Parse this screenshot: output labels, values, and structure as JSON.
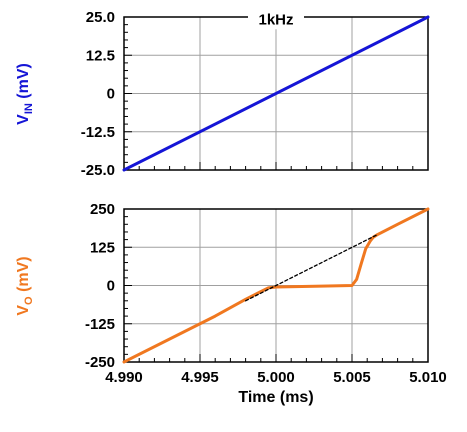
{
  "colors": {
    "vin": "#1515d6",
    "vo": "#f07820",
    "grid": "#a0a0a0",
    "reference": "#000000"
  },
  "chart_data": [
    {
      "type": "line",
      "ylabel_main": "V",
      "ylabel_sub": "IN",
      "ylabel_unit": " (mV)",
      "annotation": "1kHz",
      "xlim": [
        4.99,
        5.01
      ],
      "ylim": [
        -25,
        25
      ],
      "xticks": [
        4.99,
        4.995,
        5.0,
        5.005,
        5.01
      ],
      "yticks": [
        25,
        12.5,
        0,
        -12.5,
        -25
      ],
      "ytick_labels": [
        "25.0",
        "12.5",
        "0",
        "-12.5",
        "-25.0"
      ],
      "grid": true,
      "series": [
        {
          "x": [
            4.99,
            5.01
          ],
          "y": [
            -25,
            25
          ]
        }
      ]
    },
    {
      "type": "line",
      "ylabel_main": "V",
      "ylabel_sub": "O",
      "ylabel_unit": " (mV)",
      "xlabel": "Time (ms)",
      "xlim": [
        4.99,
        5.01
      ],
      "ylim": [
        -250,
        250
      ],
      "xticks": [
        4.99,
        4.995,
        5.0,
        5.005,
        5.01
      ],
      "xtick_labels": [
        "4.990",
        "4.995",
        "5.000",
        "5.005",
        "5.010"
      ],
      "yticks": [
        250,
        125,
        0,
        -125,
        -250
      ],
      "ytick_labels": [
        "250",
        "125",
        "0",
        "-125",
        "-250"
      ],
      "grid": true,
      "series": [
        {
          "style": "solid",
          "x": [
            4.99,
            4.996,
            4.998,
            4.999,
            4.9995,
            5.0,
            5.003,
            5.005,
            5.0053,
            5.0056,
            5.0059,
            5.0062,
            5.0064,
            5.0067,
            5.008,
            5.01
          ],
          "y": [
            -250,
            -100,
            -45,
            -20,
            -8,
            -5,
            -2,
            0,
            20,
            70,
            120,
            145,
            158,
            167,
            200,
            250
          ]
        },
        {
          "style": "dashed",
          "x": [
            4.998,
            5.0067
          ],
          "y": [
            -50,
            167
          ]
        }
      ]
    }
  ]
}
